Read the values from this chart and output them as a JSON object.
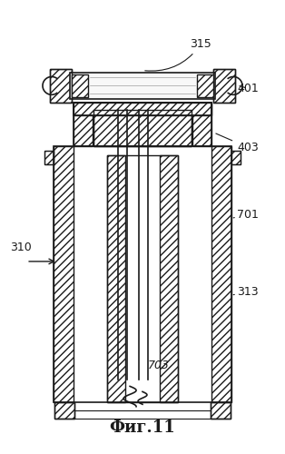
{
  "title": "Фиг.11",
  "label_310": "310",
  "label_315": "315",
  "label_401": "401",
  "label_403": "403",
  "label_701": "701",
  "label_313": "313",
  "label_703": "703",
  "bg_color": "#ffffff",
  "line_color": "#1a1a1a",
  "figsize": [
    3.14,
    5.0
  ],
  "dpi": 100
}
